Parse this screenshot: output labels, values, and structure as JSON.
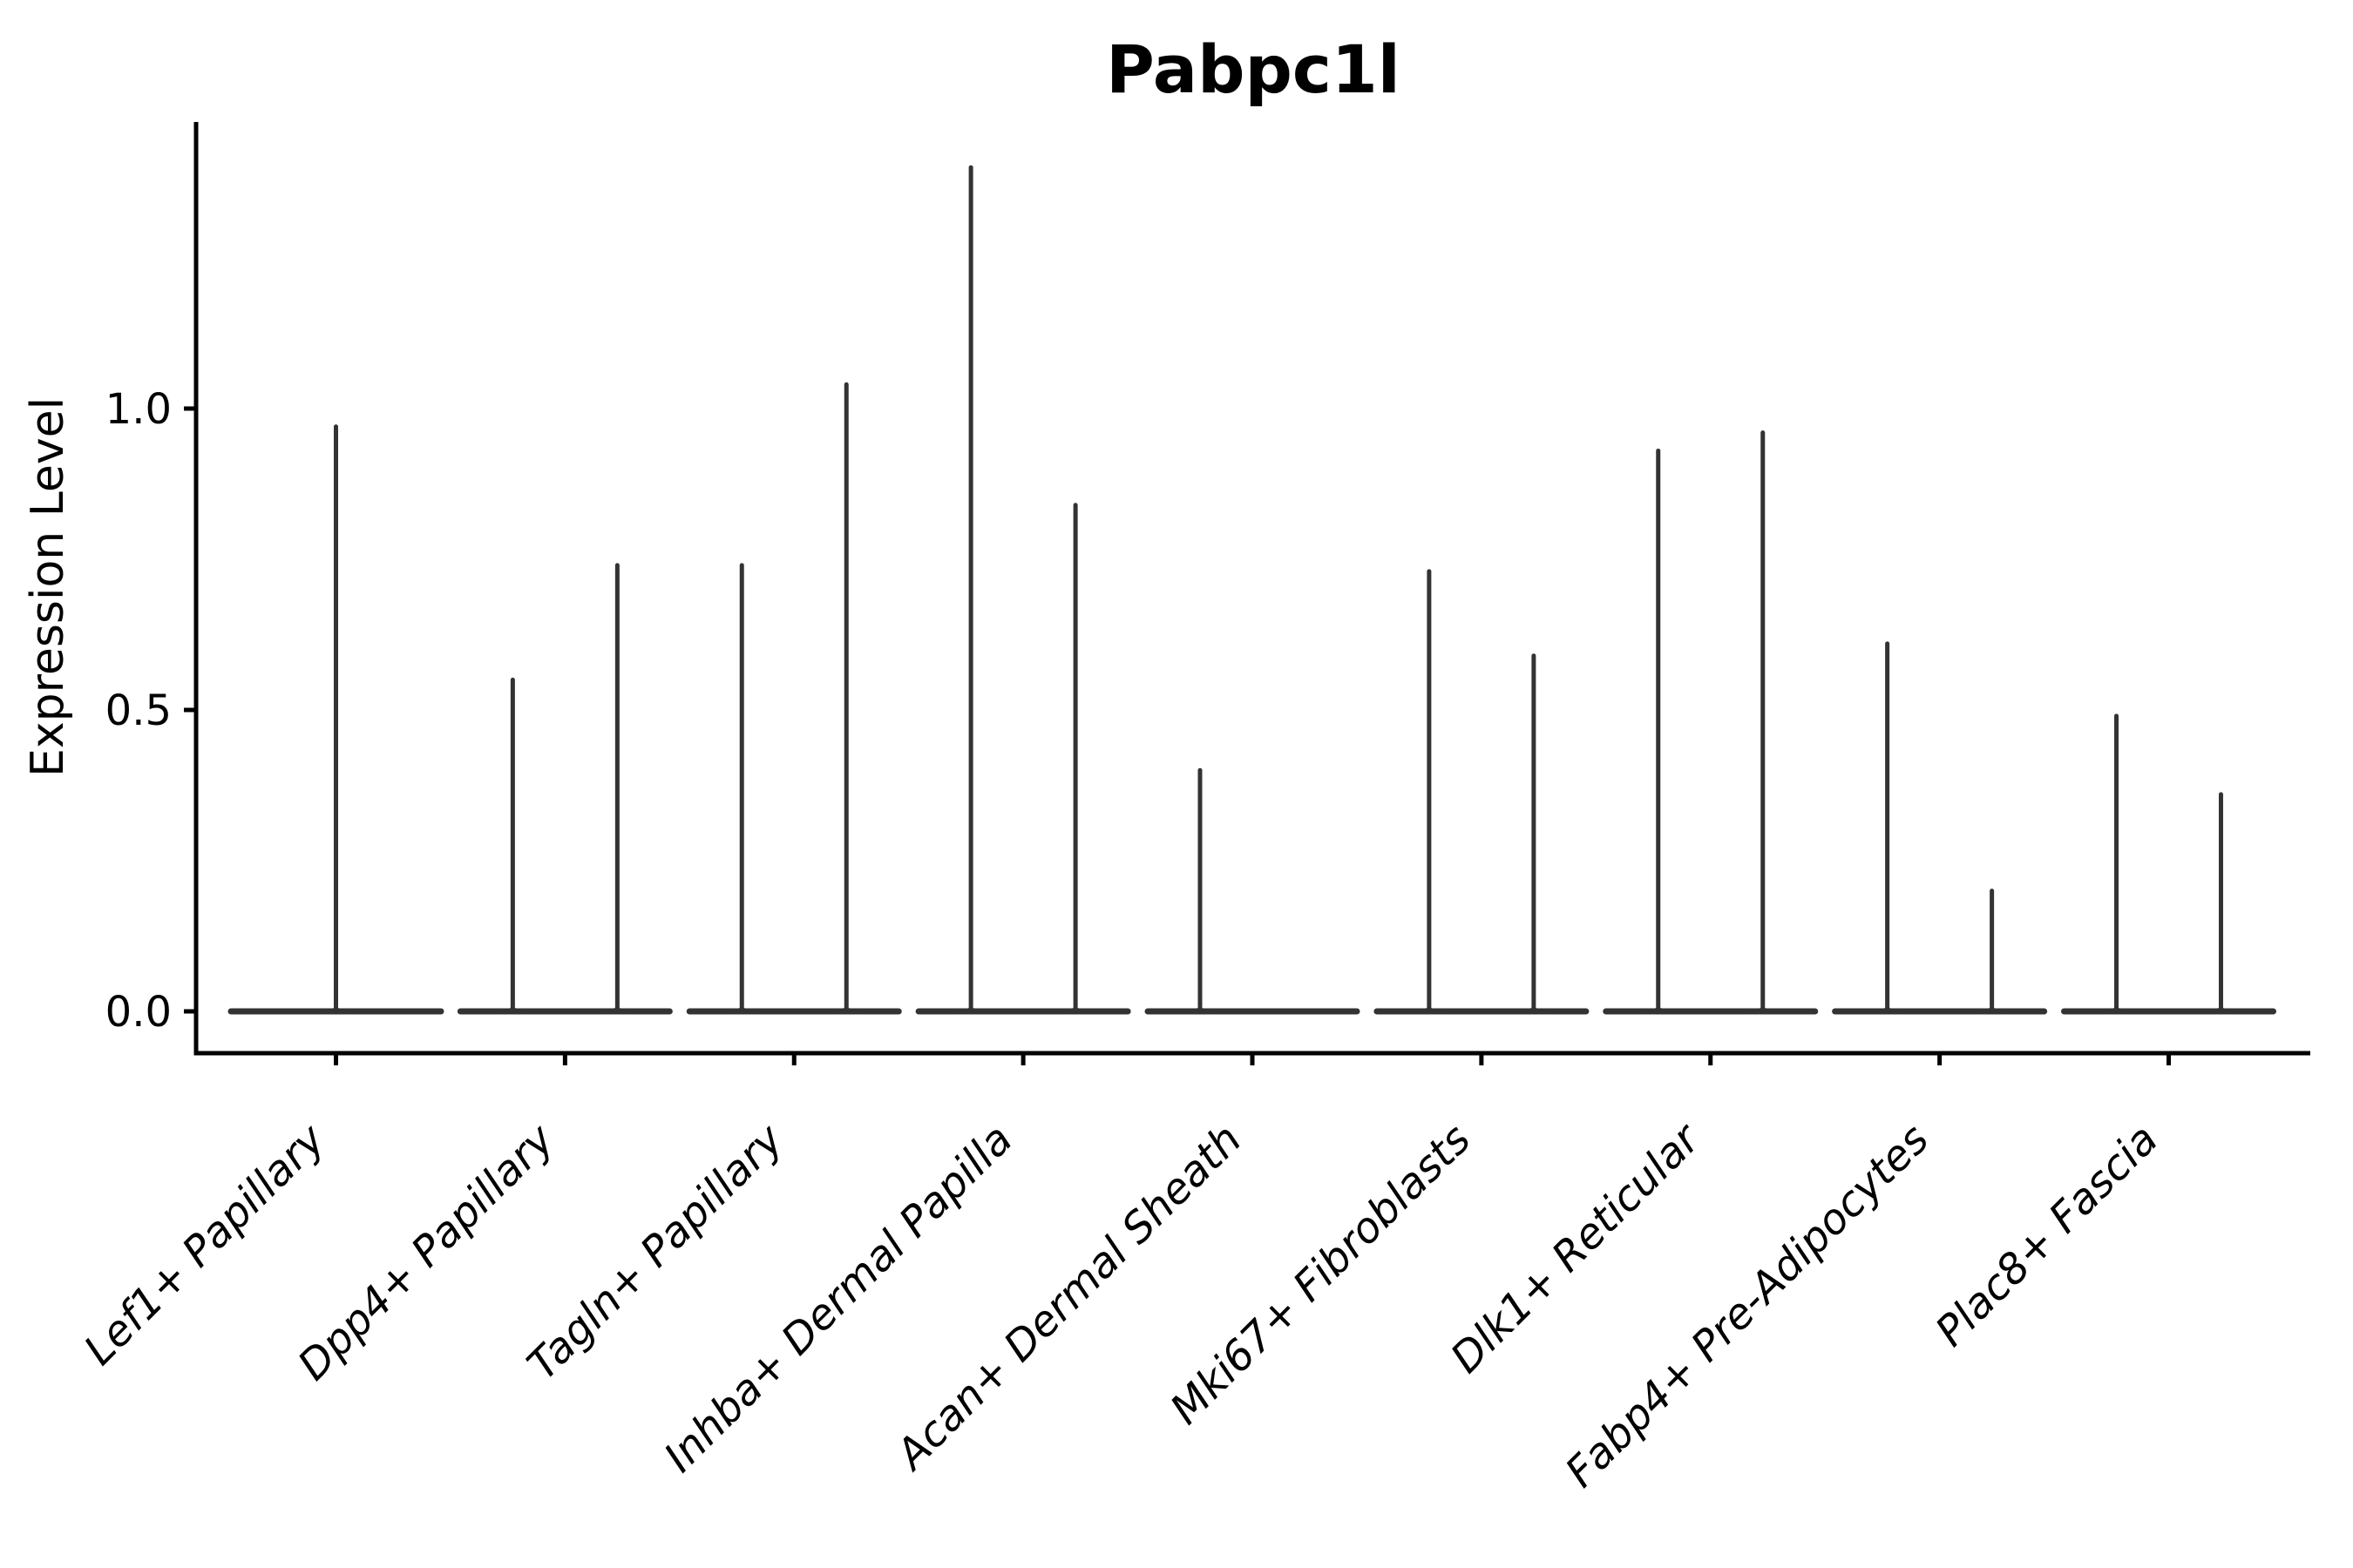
{
  "title": "Pabpc1l",
  "axes": {
    "y_label": "Expression Level",
    "y_tick_labels": [
      "0.0",
      "0.5",
      "1.0"
    ]
  },
  "colors": {
    "violin": "#333333",
    "axis": "#000000",
    "background": "#ffffff"
  },
  "chart_data": {
    "type": "violin",
    "title": "Pabpc1l",
    "xlabel": "",
    "ylabel": "Expression Level",
    "ylim": [
      -0.07,
      1.475
    ],
    "yticks": [
      0,
      0.5,
      1.0
    ],
    "ytick_labels": [
      "0.0",
      "0.5",
      "1.0"
    ],
    "grid": false,
    "legend": "none",
    "x_tick_rotation_deg": 45,
    "x_tick_style": "italic",
    "categories": [
      "Lef1+ Papillary",
      "Dpp4+ Papillary",
      "Tagln+ Papillary",
      "Inhba+ Dermal Papilla",
      "Acan+ Dermal Sheath",
      "Mki67+ Fibroblasts",
      "Dlk1+ Reticular",
      "Fabp4+ Pre-Adipocytes",
      "Plac8+ Fascia"
    ],
    "violins": [
      {
        "category": "Lef1+ Papillary",
        "groups": [
          {
            "max_expression": 0.97
          }
        ]
      },
      {
        "category": "Dpp4+ Papillary",
        "groups": [
          {
            "max_expression": 0.55
          },
          {
            "max_expression": 0.74
          }
        ]
      },
      {
        "category": "Tagln+ Papillary",
        "groups": [
          {
            "max_expression": 0.74
          },
          {
            "max_expression": 1.04
          }
        ]
      },
      {
        "category": "Inhba+ Dermal Papilla",
        "groups": [
          {
            "max_expression": 1.4
          },
          {
            "max_expression": 0.84
          }
        ]
      },
      {
        "category": "Acan+ Dermal Sheath",
        "groups": [
          {
            "max_expression": 0.4
          },
          {
            "max_expression": 0.0
          }
        ]
      },
      {
        "category": "Mki67+ Fibroblasts",
        "groups": [
          {
            "max_expression": 0.73
          },
          {
            "max_expression": 0.59
          }
        ]
      },
      {
        "category": "Dlk1+ Reticular",
        "groups": [
          {
            "max_expression": 0.93
          },
          {
            "max_expression": 0.96
          }
        ]
      },
      {
        "category": "Fabp4+ Pre-Adipocytes",
        "groups": [
          {
            "max_expression": 0.61
          },
          {
            "max_expression": 0.2
          }
        ]
      },
      {
        "category": "Plac8+ Fascia",
        "groups": [
          {
            "max_expression": 0.49
          },
          {
            "max_expression": 0.36
          }
        ]
      }
    ],
    "description": "Violin plot of expression; violins collapsed to a flat base at 0 with thin spikes reaching each group's maximum expression."
  }
}
